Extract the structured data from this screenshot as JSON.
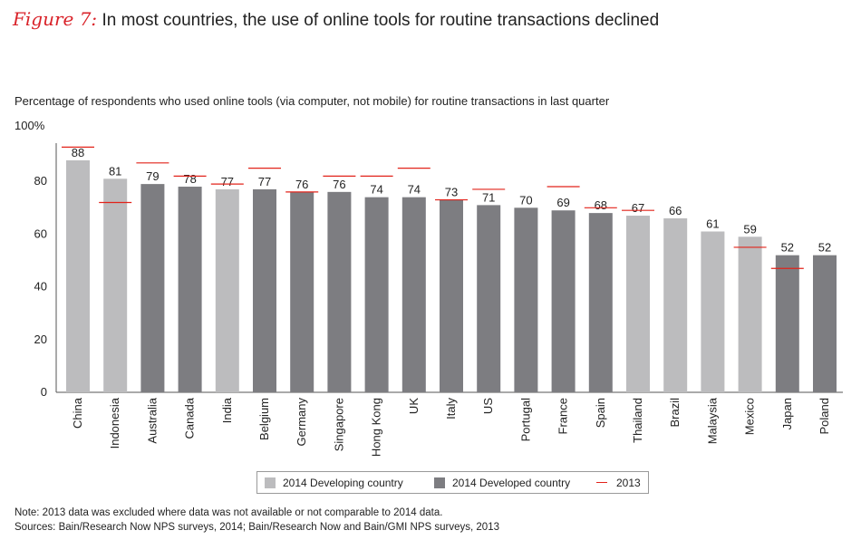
{
  "title": {
    "label": "Figure 7:",
    "text": "In most countries, the use of online tools for routine transactions declined"
  },
  "subtitle": "Percentage of respondents who used online tools (via computer, not mobile) for routine transactions in last quarter",
  "y_top_label": "100%",
  "legend": {
    "developing": "2014 Developing country",
    "developed": "2014 Developed country",
    "prior": "2013"
  },
  "notes": {
    "note": "Note: 2013 data was excluded where data was not available or not comparable to 2014 data.",
    "sources": "Sources: Bain/Research Now NPS surveys, 2014; Bain/Research Now and Bain/GMI NPS surveys, 2013"
  },
  "colors": {
    "developing": "#bcbcbe",
    "developed": "#7d7d81",
    "prior_marker": "#e2231a",
    "title_accent": "#d9232a"
  },
  "chart_data": {
    "type": "bar",
    "categories": [
      "China",
      "Indonesia",
      "Australia",
      "Canada",
      "India",
      "Belgium",
      "Germany",
      "Singapore",
      "Hong Kong",
      "UK",
      "Italy",
      "US",
      "Portugal",
      "France",
      "Spain",
      "Thailand",
      "Brazil",
      "Malaysia",
      "Mexico",
      "Japan",
      "Poland"
    ],
    "series": [
      {
        "name": "2014",
        "values": [
          88,
          81,
          79,
          78,
          77,
          77,
          76,
          76,
          74,
          74,
          73,
          71,
          70,
          69,
          68,
          67,
          66,
          61,
          59,
          52,
          52
        ],
        "group": [
          "developing",
          "developing",
          "developed",
          "developed",
          "developing",
          "developed",
          "developed",
          "developed",
          "developed",
          "developed",
          "developed",
          "developed",
          "developed",
          "developed",
          "developed",
          "developing",
          "developing",
          "developing",
          "developing",
          "developed",
          "developed"
        ]
      },
      {
        "name": "2013",
        "values": [
          93,
          72,
          87,
          82,
          79,
          85,
          76,
          82,
          82,
          85,
          73,
          77,
          null,
          78,
          70,
          69,
          null,
          null,
          55,
          47,
          null
        ]
      }
    ],
    "y_ticks": [
      "0",
      "20",
      "40",
      "60",
      "80",
      "100%"
    ],
    "ylim": [
      0,
      100
    ],
    "grid": false,
    "legend_position": "bottom"
  }
}
